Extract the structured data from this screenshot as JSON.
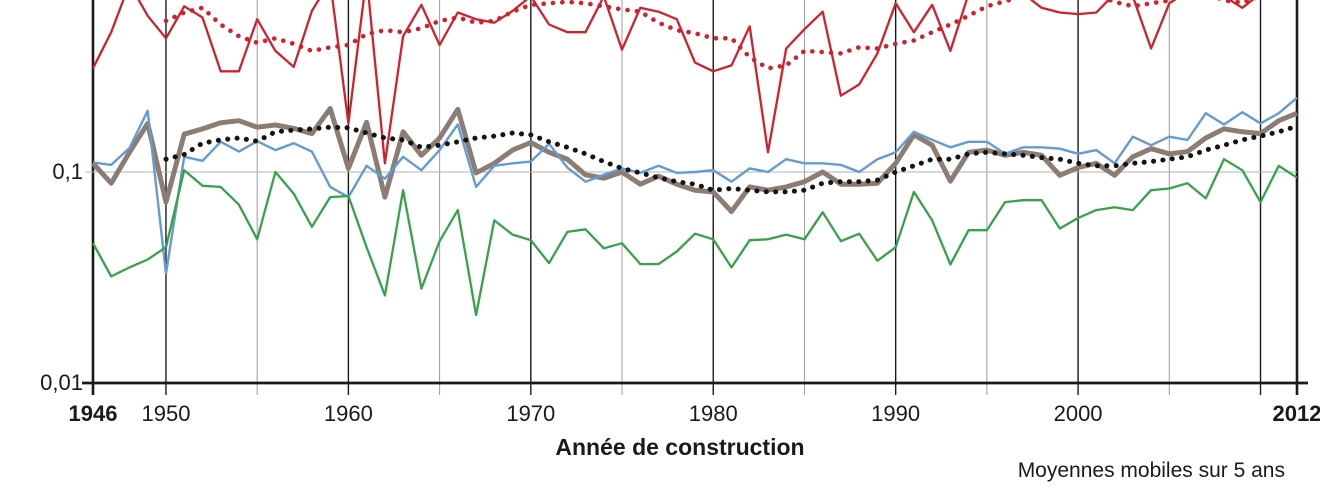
{
  "chart_data": {
    "type": "line",
    "title": "",
    "note": "Moyennes mobiles sur 5 ans",
    "x_axis": {
      "label": "Année de construction",
      "min": 1946,
      "max": 2012,
      "ticks": [
        1946,
        1950,
        1960,
        1970,
        1980,
        1990,
        2000,
        2012
      ],
      "bold_ticks": [
        1946,
        2012
      ],
      "major_gridlines": [
        1950,
        1960,
        1970,
        1980,
        1990,
        2000,
        2010
      ],
      "minor_gridlines": [
        1955,
        1965,
        1975,
        1985,
        1995,
        2005
      ],
      "edge_gridlines": [
        1946,
        2012
      ]
    },
    "y_axis": {
      "scale": "log",
      "ticks": [
        {
          "value": 0.1,
          "label": "0,1"
        },
        {
          "value": 0.01,
          "label": "0,01"
        }
      ],
      "visible_min": 0.01,
      "visible_max": 0.65,
      "gridline_at": 0.1
    },
    "years": [
      1946,
      1947,
      1948,
      1949,
      1950,
      1951,
      1952,
      1953,
      1954,
      1955,
      1956,
      1957,
      1958,
      1959,
      1960,
      1961,
      1962,
      1963,
      1964,
      1965,
      1966,
      1967,
      1968,
      1969,
      1970,
      1971,
      1972,
      1973,
      1974,
      1975,
      1976,
      1977,
      1978,
      1979,
      1980,
      1981,
      1982,
      1983,
      1984,
      1985,
      1986,
      1987,
      1988,
      1989,
      1990,
      1991,
      1992,
      1993,
      1994,
      1995,
      1996,
      1997,
      1998,
      1999,
      2000,
      2001,
      2002,
      2003,
      2004,
      2005,
      2006,
      2007,
      2008,
      2009,
      2010,
      2011,
      2012
    ],
    "clipped_note": "values above 0.65 exceed the visible top edge of the cropped chart",
    "series": [
      {
        "name": "série rouge",
        "color": "#d0212c",
        "style": "solid",
        "width": 2.3,
        "start_year": 1946,
        "values": [
          0.31,
          0.46,
          0.78,
          0.55,
          0.43,
          0.61,
          0.54,
          0.3,
          0.3,
          0.53,
          0.375,
          0.315,
          0.58,
          0.8,
          0.17,
          0.85,
          0.11,
          0.44,
          0.62,
          0.4,
          0.57,
          0.53,
          0.51,
          0.58,
          0.68,
          0.5,
          0.46,
          0.46,
          0.68,
          0.38,
          0.6,
          0.575,
          0.53,
          0.33,
          0.3,
          0.32,
          0.49,
          0.124,
          0.385,
          0.475,
          0.575,
          0.23,
          0.26,
          0.365,
          0.63,
          0.46,
          0.62,
          0.375,
          0.7,
          0.73,
          0.72,
          0.7,
          0.6,
          0.57,
          0.56,
          0.57,
          0.7,
          0.68,
          0.385,
          0.63,
          0.72,
          0.7,
          0.68,
          0.6,
          0.7,
          0.73,
          0.7
        ]
      },
      {
        "name": "série rouge — moyenne mobile sur 5 ans",
        "color": "#d0212c",
        "style": "dotted",
        "width": 4.6,
        "start_year": 1950,
        "values": [
          0.52,
          0.57,
          0.6,
          0.5,
          0.44,
          0.41,
          0.43,
          0.405,
          0.375,
          0.39,
          0.4,
          0.45,
          0.47,
          0.46,
          0.48,
          0.52,
          0.54,
          0.51,
          0.52,
          0.575,
          0.62,
          0.63,
          0.64,
          0.63,
          0.61,
          0.59,
          0.575,
          0.51,
          0.47,
          0.455,
          0.43,
          0.43,
          0.35,
          0.31,
          0.32,
          0.375,
          0.37,
          0.365,
          0.39,
          0.385,
          0.405,
          0.42,
          0.46,
          0.5,
          0.55,
          0.61,
          0.645,
          0.68,
          0.7,
          0.7,
          0.7,
          0.69,
          0.64,
          0.61,
          0.63,
          0.65,
          0.7,
          0.71,
          0.65,
          0.635,
          0.68,
          0.7,
          0.7
        ]
      },
      {
        "name": "série brune (trait épais)",
        "color": "#8b7d74",
        "style": "solid",
        "width": 5,
        "start_year": 1946,
        "values": [
          0.11,
          0.0885,
          0.124,
          0.17,
          0.072,
          0.151,
          0.16,
          0.171,
          0.175,
          0.163,
          0.167,
          0.161,
          0.152,
          0.2,
          0.104,
          0.172,
          0.076,
          0.155,
          0.12,
          0.145,
          0.198,
          0.099,
          0.11,
          0.127,
          0.138,
          0.124,
          0.115,
          0.097,
          0.0935,
          0.1,
          0.0875,
          0.0955,
          0.0875,
          0.082,
          0.0805,
          0.065,
          0.085,
          0.082,
          0.085,
          0.09,
          0.1,
          0.0875,
          0.0875,
          0.0885,
          0.11,
          0.15,
          0.134,
          0.0905,
          0.124,
          0.127,
          0.12,
          0.124,
          0.12,
          0.0965,
          0.105,
          0.11,
          0.0965,
          0.118,
          0.129,
          0.122,
          0.125,
          0.145,
          0.16,
          0.155,
          0.152,
          0.175,
          0.19
        ]
      },
      {
        "name": "série noire — moyenne mobile sur 5 ans",
        "color": "#141414",
        "style": "dotted",
        "width": 5,
        "start_year": 1950,
        "values": [
          0.115,
          0.121,
          0.137,
          0.142,
          0.145,
          0.14,
          0.155,
          0.158,
          0.16,
          0.163,
          0.162,
          0.153,
          0.145,
          0.142,
          0.131,
          0.134,
          0.139,
          0.145,
          0.148,
          0.153,
          0.15,
          0.139,
          0.131,
          0.122,
          0.112,
          0.104,
          0.099,
          0.094,
          0.09,
          0.0875,
          0.082,
          0.0835,
          0.082,
          0.0805,
          0.0805,
          0.082,
          0.0885,
          0.09,
          0.09,
          0.0915,
          0.1,
          0.107,
          0.115,
          0.115,
          0.122,
          0.124,
          0.122,
          0.12,
          0.117,
          0.115,
          0.11,
          0.107,
          0.107,
          0.11,
          0.112,
          0.115,
          0.118,
          0.127,
          0.134,
          0.142,
          0.148,
          0.155,
          0.165
        ]
      },
      {
        "name": "série bleue",
        "color": "#649bd3",
        "style": "solid",
        "width": 2.4,
        "start_year": 1946,
        "values": [
          0.111,
          0.108,
          0.13,
          0.195,
          0.033,
          0.118,
          0.113,
          0.139,
          0.125,
          0.14,
          0.127,
          0.137,
          0.125,
          0.085,
          0.076,
          0.107,
          0.093,
          0.118,
          0.102,
          0.127,
          0.168,
          0.085,
          0.107,
          0.11,
          0.112,
          0.136,
          0.105,
          0.09,
          0.097,
          0.104,
          0.099,
          0.107,
          0.099,
          0.1,
          0.102,
          0.09,
          0.104,
          0.1,
          0.115,
          0.11,
          0.11,
          0.108,
          0.1,
          0.115,
          0.124,
          0.155,
          0.142,
          0.131,
          0.139,
          0.139,
          0.122,
          0.131,
          0.131,
          0.129,
          0.122,
          0.127,
          0.11,
          0.147,
          0.134,
          0.147,
          0.142,
          0.19,
          0.168,
          0.192,
          0.17,
          0.19,
          0.225
        ]
      },
      {
        "name": "série verte",
        "color": "#35a347",
        "style": "solid",
        "width": 2.3,
        "start_year": 1946,
        "values": [
          0.046,
          0.032,
          0.0353,
          0.0385,
          0.044,
          0.102,
          0.086,
          0.085,
          0.07,
          0.048,
          0.1,
          0.079,
          0.055,
          0.076,
          0.077,
          0.044,
          0.026,
          0.082,
          0.028,
          0.047,
          0.066,
          0.021,
          0.059,
          0.0505,
          0.0475,
          0.037,
          0.052,
          0.0535,
          0.0435,
          0.046,
          0.0366,
          0.0366,
          0.042,
          0.051,
          0.048,
          0.0353,
          0.0475,
          0.048,
          0.0505,
          0.048,
          0.0645,
          0.047,
          0.051,
          0.038,
          0.044,
          0.0805,
          0.059,
          0.0365,
          0.053,
          0.053,
          0.072,
          0.0735,
          0.0735,
          0.054,
          0.0605,
          0.066,
          0.068,
          0.066,
          0.082,
          0.0835,
          0.0885,
          0.075,
          0.115,
          0.102,
          0.072,
          0.107,
          0.094
        ]
      }
    ],
    "colors": {
      "axis_dark": "#1a1a1a",
      "grid_minor": "#9b9b9b",
      "grid_light": "#b3b3b3"
    }
  }
}
